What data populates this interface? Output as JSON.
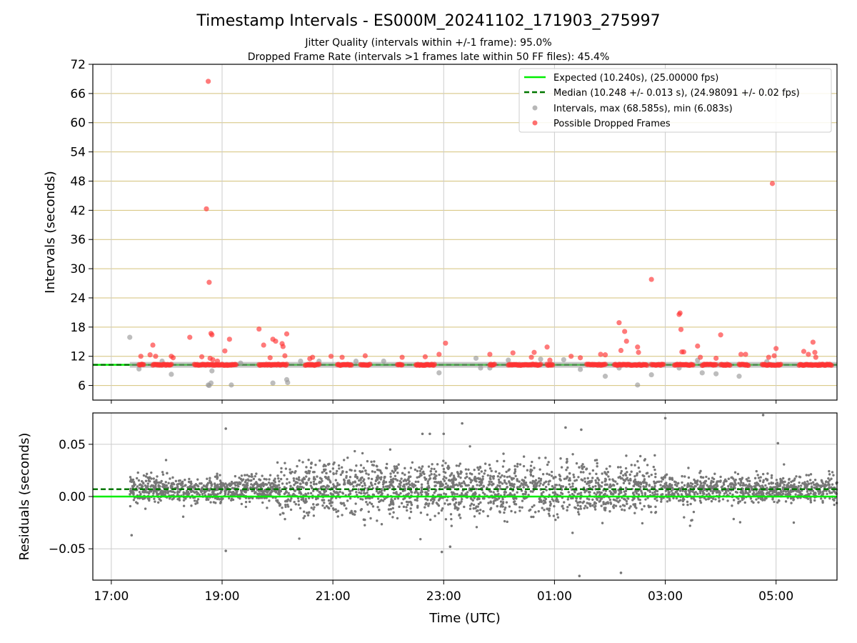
{
  "chart_data": [
    {
      "type": "scatter",
      "title": "Timestamp Intervals - ES000M_20241102_171903_275997",
      "subtitle_lines": [
        "Jitter Quality (intervals within +/-1 frame): 95.0%",
        "Dropped Frame Rate (intervals >1 frames late within 50 FF files): 45.4%"
      ],
      "xlabel": "",
      "ylabel": "Intervals (seconds)",
      "x_start": "2024-11-02T16:40:00",
      "x_end": "2024-11-03T06:06:00",
      "x_ticks": [
        {
          "time": "2024-11-02T17:00:00",
          "label": "17:00"
        },
        {
          "time": "2024-11-02T19:00:00",
          "label": "19:00"
        },
        {
          "time": "2024-11-02T21:00:00",
          "label": "21:00"
        },
        {
          "time": "2024-11-02T23:00:00",
          "label": "23:00"
        },
        {
          "time": "2024-11-03T01:00:00",
          "label": "01:00"
        },
        {
          "time": "2024-11-03T03:00:00",
          "label": "03:00"
        },
        {
          "time": "2024-11-03T05:00:00",
          "label": "05:00"
        }
      ],
      "ylim": [
        3,
        72
      ],
      "y_ticks": [
        {
          "v": 6,
          "label": "6"
        },
        {
          "v": 12,
          "label": "12"
        },
        {
          "v": 18,
          "label": "18"
        },
        {
          "v": 24,
          "label": "24"
        },
        {
          "v": 30,
          "label": "30"
        },
        {
          "v": 36,
          "label": "36"
        },
        {
          "v": 42,
          "label": "42"
        },
        {
          "v": 48,
          "label": "48"
        },
        {
          "v": 54,
          "label": "54"
        },
        {
          "v": 60,
          "label": "60"
        },
        {
          "v": 66,
          "label": "66"
        },
        {
          "v": 72,
          "label": "72"
        }
      ],
      "grid": true,
      "legend_position": "top-right",
      "legend": [
        {
          "label": "Expected (10.240s), (25.00000 fps)",
          "kind": "line",
          "color": "#00ee00"
        },
        {
          "label": "Median (10.248 +/- 0.013 s), (24.98091 +/- 0.02 fps)",
          "kind": "dashed",
          "color": "#007700"
        },
        {
          "label": "Intervals, max (68.585s), min (6.083s)",
          "kind": "dot",
          "color": "#999999"
        },
        {
          "label": "Possible Dropped Frames",
          "kind": "dot",
          "color": "#ff3333"
        }
      ],
      "expected_interval": 10.24,
      "median_interval": 10.248,
      "colors": {
        "expected": "#00ee00",
        "median": "#007700",
        "normal": "#999999",
        "dropped": "#ff3333",
        "hgrid": "#d4c27a",
        "vgrid": "#cccccc"
      },
      "series": [
        {
          "name": "Intervals, max (68.585s), min (6.083s)",
          "marker": "dot",
          "points": [
            [
              "2024-11-02T17:20:00",
              15.9
            ],
            [
              "2024-11-02T17:30:00",
              9.4
            ],
            [
              "2024-11-02T17:55:00",
              11.0
            ],
            [
              "2024-11-02T18:05:00",
              8.3
            ],
            [
              "2024-11-02T18:45:00",
              6.1
            ],
            [
              "2024-11-02T18:46:00",
              6.0
            ],
            [
              "2024-11-02T18:48:00",
              6.5
            ],
            [
              "2024-11-02T18:49:00",
              9.0
            ],
            [
              "2024-11-02T19:10:00",
              6.1
            ],
            [
              "2024-11-02T19:20:00",
              10.6
            ],
            [
              "2024-11-02T19:55:00",
              6.5
            ],
            [
              "2024-11-02T20:10:00",
              7.2
            ],
            [
              "2024-11-02T20:11:00",
              6.6
            ],
            [
              "2024-11-02T20:25:00",
              11.0
            ],
            [
              "2024-11-02T20:45:00",
              11.0
            ],
            [
              "2024-11-02T21:25:00",
              11.0
            ],
            [
              "2024-11-02T21:55:00",
              11.0
            ],
            [
              "2024-11-02T22:55:00",
              8.6
            ],
            [
              "2024-11-02T23:35:00",
              11.6
            ],
            [
              "2024-11-02T23:40:00",
              9.6
            ],
            [
              "2024-11-02T23:50:00",
              9.6
            ],
            [
              "2024-11-03T00:10:00",
              11.2
            ],
            [
              "2024-11-03T00:45:00",
              11.4
            ],
            [
              "2024-11-03T01:10:00",
              11.3
            ],
            [
              "2024-11-03T01:28:00",
              9.3
            ],
            [
              "2024-11-03T01:55:00",
              7.9
            ],
            [
              "2024-11-03T02:10:00",
              9.6
            ],
            [
              "2024-11-03T02:30:00",
              6.1
            ],
            [
              "2024-11-03T02:45:00",
              8.2
            ],
            [
              "2024-11-03T03:15:00",
              9.6
            ],
            [
              "2024-11-03T03:35:00",
              11.2
            ],
            [
              "2024-11-03T03:40:00",
              8.6
            ],
            [
              "2024-11-03T03:55:00",
              8.4
            ],
            [
              "2024-11-03T04:20:00",
              7.9
            ],
            [
              "2024-11-03T04:50:00",
              10.9
            ]
          ]
        },
        {
          "name": "Possible Dropped Frames",
          "marker": "dot",
          "points": [
            [
              "2024-11-02T17:32:00",
              12.0
            ],
            [
              "2024-11-02T17:42:00",
              12.3
            ],
            [
              "2024-11-02T17:45:00",
              14.3
            ],
            [
              "2024-11-02T17:48:00",
              12.0
            ],
            [
              "2024-11-02T18:05:00",
              12.0
            ],
            [
              "2024-11-02T18:07:00",
              11.7
            ],
            [
              "2024-11-02T18:25:00",
              15.9
            ],
            [
              "2024-11-02T18:38:00",
              11.9
            ],
            [
              "2024-11-02T18:45:00",
              68.5
            ],
            [
              "2024-11-02T18:43:00",
              42.3
            ],
            [
              "2024-11-02T18:46:00",
              27.2
            ],
            [
              "2024-11-02T18:48:00",
              16.7
            ],
            [
              "2024-11-02T18:49:00",
              16.4
            ],
            [
              "2024-11-02T18:47:00",
              11.6
            ],
            [
              "2024-11-02T18:50:00",
              11.3
            ],
            [
              "2024-11-02T18:55:00",
              11.0
            ],
            [
              "2024-11-02T19:03:00",
              13.1
            ],
            [
              "2024-11-02T19:08:00",
              15.5
            ],
            [
              "2024-11-02T19:40:00",
              17.6
            ],
            [
              "2024-11-02T19:45:00",
              14.3
            ],
            [
              "2024-11-02T19:52:00",
              11.7
            ],
            [
              "2024-11-02T19:55:00",
              15.5
            ],
            [
              "2024-11-02T19:58:00",
              15.1
            ],
            [
              "2024-11-02T20:05:00",
              14.6
            ],
            [
              "2024-11-02T20:06:00",
              14.0
            ],
            [
              "2024-11-02T20:08:00",
              12.1
            ],
            [
              "2024-11-02T20:10:00",
              16.6
            ],
            [
              "2024-11-02T20:35:00",
              11.5
            ],
            [
              "2024-11-02T20:38:00",
              11.8
            ],
            [
              "2024-11-02T20:58:00",
              12.0
            ],
            [
              "2024-11-02T21:10:00",
              11.8
            ],
            [
              "2024-11-02T21:35:00",
              12.1
            ],
            [
              "2024-11-02T22:15:00",
              11.8
            ],
            [
              "2024-11-02T22:40:00",
              11.9
            ],
            [
              "2024-11-02T22:55:00",
              12.4
            ],
            [
              "2024-11-02T23:02:00",
              14.7
            ],
            [
              "2024-11-02T23:50:00",
              12.4
            ],
            [
              "2024-11-03T00:15:00",
              12.7
            ],
            [
              "2024-11-03T00:35:00",
              11.8
            ],
            [
              "2024-11-03T00:38:00",
              12.8
            ],
            [
              "2024-11-03T00:52:00",
              13.9
            ],
            [
              "2024-11-03T00:55:00",
              11.2
            ],
            [
              "2024-11-03T01:18:00",
              12.0
            ],
            [
              "2024-11-03T01:28:00",
              11.7
            ],
            [
              "2024-11-03T01:50:00",
              12.4
            ],
            [
              "2024-11-03T01:55:00",
              12.3
            ],
            [
              "2024-11-03T02:10:00",
              18.9
            ],
            [
              "2024-11-03T02:12:00",
              13.2
            ],
            [
              "2024-11-03T02:16:00",
              17.1
            ],
            [
              "2024-11-03T02:18:00",
              15.1
            ],
            [
              "2024-11-03T02:30:00",
              13.9
            ],
            [
              "2024-11-03T02:31:00",
              12.8
            ],
            [
              "2024-11-03T02:45:00",
              27.8
            ],
            [
              "2024-11-03T03:15:00",
              20.6
            ],
            [
              "2024-11-03T03:16:00",
              20.9
            ],
            [
              "2024-11-03T03:17:00",
              17.5
            ],
            [
              "2024-11-03T03:18:00",
              12.9
            ],
            [
              "2024-11-03T03:20:00",
              12.9
            ],
            [
              "2024-11-03T03:35:00",
              14.1
            ],
            [
              "2024-11-03T03:38:00",
              11.8
            ],
            [
              "2024-11-03T03:55:00",
              11.6
            ],
            [
              "2024-11-03T04:00:00",
              16.4
            ],
            [
              "2024-11-03T04:22:00",
              12.4
            ],
            [
              "2024-11-03T04:27:00",
              12.4
            ],
            [
              "2024-11-03T04:52:00",
              11.8
            ],
            [
              "2024-11-03T04:56:00",
              47.5
            ],
            [
              "2024-11-03T04:58:00",
              12.1
            ],
            [
              "2024-11-03T05:00:00",
              13.6
            ],
            [
              "2024-11-03T05:30:00",
              13.0
            ],
            [
              "2024-11-03T05:35:00",
              12.4
            ],
            [
              "2024-11-03T05:40:00",
              14.9
            ],
            [
              "2024-11-03T05:42:00",
              12.8
            ],
            [
              "2024-11-03T05:43:00",
              11.8
            ]
          ]
        }
      ]
    },
    {
      "type": "scatter",
      "title": "",
      "xlabel": "Time (UTC)",
      "ylabel": "Residuals (seconds)",
      "ylim": [
        -0.08,
        0.08
      ],
      "y_ticks": [
        {
          "v": 0.05,
          "label": "0.05"
        },
        {
          "v": 0.0,
          "label": "0.00"
        },
        {
          "v": -0.05,
          "label": "−0.05"
        }
      ],
      "grid": true,
      "expected_residual": 0.0,
      "median_residual": 0.007,
      "colors": {
        "points": "#777777",
        "expected": "#00ee00",
        "median": "#007700"
      },
      "outliers": [
        [
          "2024-11-02T17:22:00",
          -0.037
        ],
        [
          "2024-11-02T19:04:00",
          0.065
        ],
        [
          "2024-11-02T19:04:00",
          -0.052
        ],
        [
          "2024-11-02T22:37:00",
          0.06
        ],
        [
          "2024-11-02T22:45:00",
          0.06
        ],
        [
          "2024-11-02T23:00:00",
          0.06
        ],
        [
          "2024-11-02T23:20:00",
          0.07
        ],
        [
          "2024-11-02T22:58:00",
          -0.053
        ],
        [
          "2024-11-02T23:07:00",
          -0.048
        ],
        [
          "2024-11-03T01:12:00",
          0.066
        ],
        [
          "2024-11-03T01:29:00",
          0.064
        ],
        [
          "2024-11-03T01:27:00",
          -0.076
        ],
        [
          "2024-11-03T02:12:00",
          -0.073
        ],
        [
          "2024-11-03T03:00:00",
          0.075
        ],
        [
          "2024-11-03T04:46:00",
          0.078
        ],
        [
          "2024-11-03T05:02:00",
          0.051
        ]
      ]
    }
  ]
}
